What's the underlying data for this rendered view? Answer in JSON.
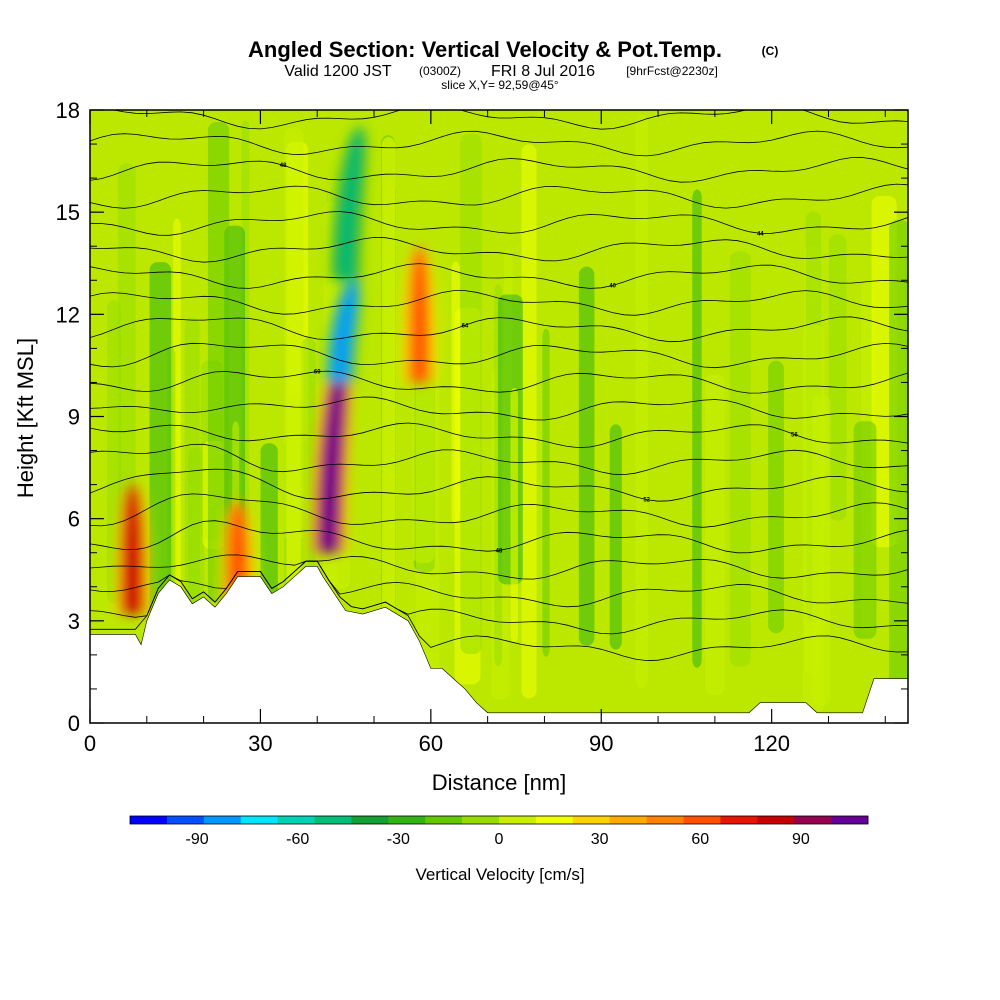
{
  "header": {
    "title": "Angled Section: Vertical Velocity & Pot.Temp.",
    "title_tag": "(C)",
    "valid_prefix": "Valid 1200 JST",
    "valid_utc": "(0300Z)",
    "valid_date": "FRI 8 Jul 2016",
    "forecast": "[9hrFcst@2230z]",
    "slice": "slice X,Y= 92,59@45°"
  },
  "chart_data": {
    "type": "heatmap",
    "title": "Angled Section: Vertical Velocity & Pot.Temp.",
    "xlabel": "Distance [nm]",
    "ylabel": "Height [Kft MSL]",
    "xlim": [
      0,
      144
    ],
    "ylim": [
      0,
      18
    ],
    "xticks": [
      0,
      30,
      60,
      90,
      120
    ],
    "yticks": [
      0,
      3,
      6,
      9,
      12,
      15,
      18
    ],
    "colorbar": {
      "label": "Vertical Velocity [cm/s]",
      "tick_values": [
        -90,
        -60,
        -30,
        0,
        30,
        60,
        90
      ],
      "colors": [
        "#0000ff",
        "#0050ff",
        "#0096ff",
        "#00e6ff",
        "#00d2b4",
        "#00be78",
        "#14a032",
        "#32b414",
        "#64c800",
        "#96dc00",
        "#c8f000",
        "#f0ff00",
        "#ffd200",
        "#ffaa00",
        "#ff8200",
        "#ff5000",
        "#e61400",
        "#c80000",
        "#960050",
        "#640096"
      ]
    },
    "features": [
      {
        "name": "updraft",
        "x": 7.5,
        "y_range": [
          3.2,
          7.0
        ],
        "w": 85
      },
      {
        "name": "updraft",
        "x": 26,
        "y_range": [
          3.5,
          6.5
        ],
        "w": 60
      },
      {
        "name": "updraft",
        "x": 42,
        "y_range": [
          5.0,
          11.0
        ],
        "w": 100
      },
      {
        "name": "updraft",
        "x": 58,
        "y_range": [
          10.0,
          14.0
        ],
        "w": 55
      },
      {
        "name": "downdraft",
        "x": 44,
        "y_range": [
          10.0,
          13.0
        ],
        "w": -85
      },
      {
        "name": "downdraft",
        "x": 45,
        "y_range": [
          13.0,
          17.5
        ],
        "w": -55
      }
    ],
    "terrain_top_kft": [
      [
        0,
        2.6
      ],
      [
        8,
        2.6
      ],
      [
        9,
        2.3
      ],
      [
        10,
        3.0
      ],
      [
        12,
        3.8
      ],
      [
        14,
        4.2
      ],
      [
        16,
        4.0
      ],
      [
        18,
        3.5
      ],
      [
        20,
        3.7
      ],
      [
        22,
        3.4
      ],
      [
        24,
        3.8
      ],
      [
        26,
        4.3
      ],
      [
        30,
        4.3
      ],
      [
        32,
        3.8
      ],
      [
        34,
        4.0
      ],
      [
        36,
        4.3
      ],
      [
        38,
        4.6
      ],
      [
        40,
        4.6
      ],
      [
        41,
        4.3
      ],
      [
        43,
        3.8
      ],
      [
        45,
        3.3
      ],
      [
        48,
        3.2
      ],
      [
        52,
        3.4
      ],
      [
        56,
        3.0
      ],
      [
        58,
        2.4
      ],
      [
        60,
        1.6
      ],
      [
        62,
        1.6
      ],
      [
        64,
        1.3
      ],
      [
        66,
        1.0
      ],
      [
        68,
        0.6
      ],
      [
        70,
        0.3
      ],
      [
        116,
        0.3
      ],
      [
        118,
        0.6
      ],
      [
        126,
        0.6
      ],
      [
        128,
        0.3
      ],
      [
        136,
        0.3
      ],
      [
        138,
        1.3
      ],
      [
        144,
        1.3
      ]
    ],
    "contour_labels": [
      "40",
      "42",
      "44",
      "46",
      "48",
      "50",
      "52",
      "54",
      "56",
      "58",
      "60",
      "62",
      "64",
      "66"
    ]
  }
}
